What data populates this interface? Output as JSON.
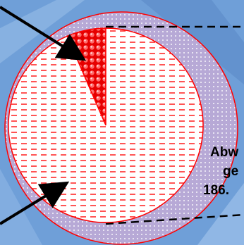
{
  "chart_data": {
    "type": "pie",
    "slices": [
      {
        "value": 6.5
      },
      {
        "value": 93.5
      }
    ],
    "annotation_lines": [
      "Abw",
      "ge",
      "186."
    ],
    "colors": {
      "background": "#6f9fd8",
      "outer_ring": "#b7a9d6",
      "pie_fill": "#ffffff",
      "hatch": "#ff2a2a",
      "highlight": "#e60000",
      "outline": "#ff0000",
      "arrow": "#000000"
    }
  }
}
